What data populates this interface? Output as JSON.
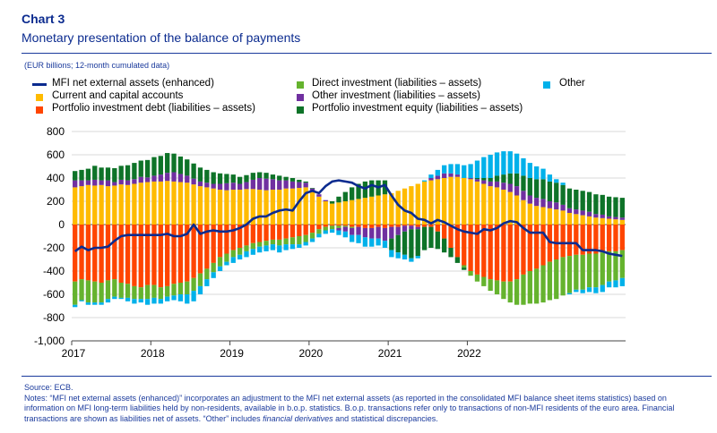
{
  "header": {
    "label": "Chart 3",
    "title": "Monetary presentation of the balance of payments",
    "units": "(EUR billions; 12-month cumulated data)"
  },
  "colors": {
    "current": "#ffbb00",
    "portfolio_debt": "#ff4500",
    "direct": "#65b32e",
    "other_inv": "#7030a0",
    "equity": "#0e7328",
    "other": "#00b1ea",
    "mfi": "#0b2b8f"
  },
  "legend": [
    {
      "key": "mfi",
      "label": "MFI net external assets (enhanced)",
      "kind": "line"
    },
    {
      "key": "current",
      "label": "Current and capital accounts",
      "kind": "bar"
    },
    {
      "key": "portfolio_debt",
      "label": "Portfolio investment debt (liabilities – assets)",
      "kind": "bar"
    },
    {
      "key": "direct",
      "label": "Direct investment (liabilities – assets)",
      "kind": "bar"
    },
    {
      "key": "other_inv",
      "label": "Other investment (liabilities – assets)",
      "kind": "bar"
    },
    {
      "key": "equity",
      "label": "Portfolio investment equity (liabilities – assets)",
      "kind": "bar"
    },
    {
      "key": "other",
      "label": "Other",
      "kind": "bar"
    }
  ],
  "chart_data": {
    "type": "bar",
    "stacked": true,
    "x_start": "2017-01",
    "x_ticks": [
      "2017",
      "2018",
      "2019",
      "2020",
      "2021",
      "2022"
    ],
    "ylim": [
      -1000,
      800
    ],
    "y_ticks": [
      800,
      600,
      400,
      200,
      0,
      -200,
      -400,
      -600,
      -800,
      -1000
    ],
    "y_tick_labels": [
      "800",
      "600",
      "400",
      "200",
      "0",
      "-200",
      "-400",
      "-600",
      "-800",
      "-1,000"
    ],
    "grid": true,
    "series": [
      {
        "key": "current",
        "name": "Current and capital accounts",
        "values": [
          320,
          330,
          340,
          335,
          340,
          330,
          335,
          345,
          340,
          350,
          360,
          365,
          370,
          370,
          375,
          370,
          365,
          360,
          345,
          330,
          320,
          310,
          300,
          295,
          300,
          300,
          305,
          305,
          300,
          295,
          300,
          300,
          310,
          310,
          315,
          320,
          280,
          240,
          200,
          180,
          190,
          200,
          210,
          220,
          230,
          240,
          250,
          260,
          270,
          290,
          310,
          330,
          350,
          370,
          380,
          390,
          400,
          410,
          410,
          400,
          390,
          370,
          350,
          330,
          320,
          300,
          280,
          250,
          210,
          180,
          160,
          150,
          140,
          130,
          120,
          100,
          90,
          80,
          70,
          60,
          55,
          50,
          45,
          40
        ]
      },
      {
        "key": "portfolio_debt",
        "name": "Portfolio investment debt (liabilities – assets)",
        "values": [
          -490,
          -470,
          -480,
          -490,
          -500,
          -480,
          -470,
          -500,
          -510,
          -530,
          -540,
          -520,
          -520,
          -540,
          -530,
          -510,
          -500,
          -490,
          -460,
          -420,
          -380,
          -330,
          -280,
          -250,
          -220,
          -200,
          -180,
          -160,
          -150,
          -140,
          -130,
          -130,
          -120,
          -110,
          -100,
          -90,
          -70,
          -40,
          -20,
          -10,
          -10,
          -10,
          -20,
          -20,
          -30,
          -30,
          -20,
          -30,
          -20,
          -20,
          -10,
          -10,
          -20,
          -20,
          -20,
          -60,
          -120,
          -200,
          -280,
          -350,
          -400,
          -430,
          -450,
          -470,
          -480,
          -490,
          -490,
          -470,
          -430,
          -400,
          -380,
          -350,
          -320,
          -300,
          -280,
          -270,
          -260,
          -260,
          -250,
          -250,
          -240,
          -230,
          -230,
          -220
        ]
      },
      {
        "key": "direct",
        "name": "Direct investment (liabilities – assets)",
        "values": [
          -200,
          -180,
          -190,
          -180,
          -170,
          -160,
          -150,
          -130,
          -120,
          -110,
          -100,
          -120,
          -110,
          -100,
          -90,
          -100,
          -100,
          -110,
          -110,
          -110,
          -90,
          -80,
          -80,
          -70,
          -60,
          -60,
          -50,
          -50,
          -40,
          -40,
          -40,
          -50,
          -50,
          -60,
          -70,
          -60,
          -50,
          -40,
          -30,
          -30,
          -20,
          -10,
          -10,
          0,
          0,
          0,
          0,
          0,
          0,
          0,
          0,
          0,
          0,
          0,
          0,
          0,
          0,
          0,
          0,
          -20,
          -40,
          -60,
          -80,
          -100,
          -120,
          -150,
          -180,
          -220,
          -260,
          -280,
          -300,
          -320,
          -330,
          -340,
          -330,
          -320,
          -300,
          -300,
          -290,
          -290,
          -280,
          -260,
          -250,
          -240
        ]
      },
      {
        "key": "other_inv",
        "name": "Other investment (liabilities – assets)",
        "values": [
          60,
          50,
          40,
          50,
          40,
          50,
          30,
          40,
          40,
          40,
          50,
          40,
          50,
          60,
          70,
          80,
          70,
          60,
          50,
          40,
          40,
          40,
          50,
          60,
          60,
          50,
          60,
          80,
          100,
          100,
          90,
          80,
          70,
          60,
          50,
          40,
          30,
          20,
          10,
          0,
          -20,
          -40,
          -60,
          -70,
          -80,
          -90,
          -100,
          -110,
          -100,
          -70,
          -50,
          -30,
          -20,
          0,
          20,
          30,
          40,
          30,
          20,
          0,
          10,
          20,
          30,
          40,
          50,
          60,
          70,
          80,
          80,
          70,
          70,
          70,
          60,
          60,
          50,
          40,
          40,
          40,
          40,
          30,
          30,
          20,
          20,
          20
        ]
      },
      {
        "key": "equity",
        "name": "Portfolio investment equity (liabilities – assets)",
        "values": [
          80,
          90,
          100,
          120,
          110,
          110,
          120,
          120,
          130,
          140,
          140,
          150,
          160,
          160,
          170,
          160,
          150,
          140,
          130,
          120,
          110,
          100,
          90,
          80,
          70,
          60,
          60,
          60,
          50,
          50,
          40,
          40,
          30,
          30,
          20,
          10,
          5,
          0,
          0,
          20,
          50,
          80,
          110,
          130,
          140,
          140,
          130,
          120,
          -100,
          -150,
          -200,
          -250,
          -230,
          -200,
          -180,
          -150,
          -120,
          -80,
          -50,
          -20,
          0,
          10,
          20,
          30,
          50,
          70,
          90,
          110,
          130,
          150,
          160,
          170,
          170,
          170,
          170,
          170,
          170,
          170,
          170,
          170,
          170,
          170,
          170,
          170
        ]
      },
      {
        "key": "other",
        "name": "Other",
        "values": [
          -20,
          -10,
          -20,
          -20,
          -20,
          -30,
          -20,
          -10,
          -30,
          -40,
          -30,
          -50,
          -50,
          -40,
          -40,
          -40,
          -60,
          -80,
          -90,
          -70,
          -60,
          -50,
          -40,
          -30,
          -50,
          -40,
          -50,
          -50,
          -50,
          -50,
          -50,
          -60,
          -50,
          -40,
          -30,
          -30,
          -30,
          -30,
          -30,
          -30,
          -40,
          -50,
          -60,
          -70,
          -80,
          -70,
          -60,
          -60,
          -60,
          -50,
          -40,
          -30,
          -20,
          10,
          30,
          50,
          70,
          80,
          90,
          110,
          120,
          150,
          180,
          200,
          200,
          200,
          190,
          170,
          150,
          130,
          110,
          90,
          60,
          30,
          20,
          -10,
          -20,
          -30,
          -40,
          -50,
          -60,
          -50,
          -60,
          -70
        ]
      }
    ],
    "line": {
      "key": "mfi",
      "name": "MFI net external assets (enhanced)",
      "values": [
        -230,
        -190,
        -220,
        -200,
        -200,
        -190,
        -140,
        -100,
        -90,
        -90,
        -90,
        -90,
        -90,
        -90,
        -80,
        -100,
        -100,
        -80,
        0,
        -80,
        -60,
        -50,
        -60,
        -60,
        -50,
        -30,
        0,
        50,
        70,
        70,
        100,
        120,
        130,
        120,
        200,
        270,
        290,
        270,
        330,
        370,
        380,
        370,
        360,
        330,
        310,
        340,
        320,
        340,
        250,
        170,
        120,
        100,
        50,
        40,
        10,
        40,
        20,
        -10,
        -40,
        -60,
        -70,
        -80,
        -40,
        -50,
        -30,
        10,
        30,
        20,
        -30,
        -70,
        -70,
        -70,
        -150,
        -160,
        -160,
        -160,
        -160,
        -220,
        -220,
        -220,
        -230,
        -250,
        -260,
        -270
      ]
    }
  },
  "footer": {
    "source": "Source: ECB.",
    "notes_1": "Notes: “MFI net external assets (enhanced)” incorporates an adjustment to the MFI net external assets (as reported in the consolidated MFI balance sheet items statistics) based on information on MFI long-term liabilities held by non-residents, available in b.o.p. statistics. B.o.p. transactions refer only to transactions of non-MFI residents of the euro area. Financial transactions are shown as liabilities net of assets. “Other” includes ",
    "notes_italic": "financial derivatives",
    "notes_2": " and statistical discrepancies."
  }
}
